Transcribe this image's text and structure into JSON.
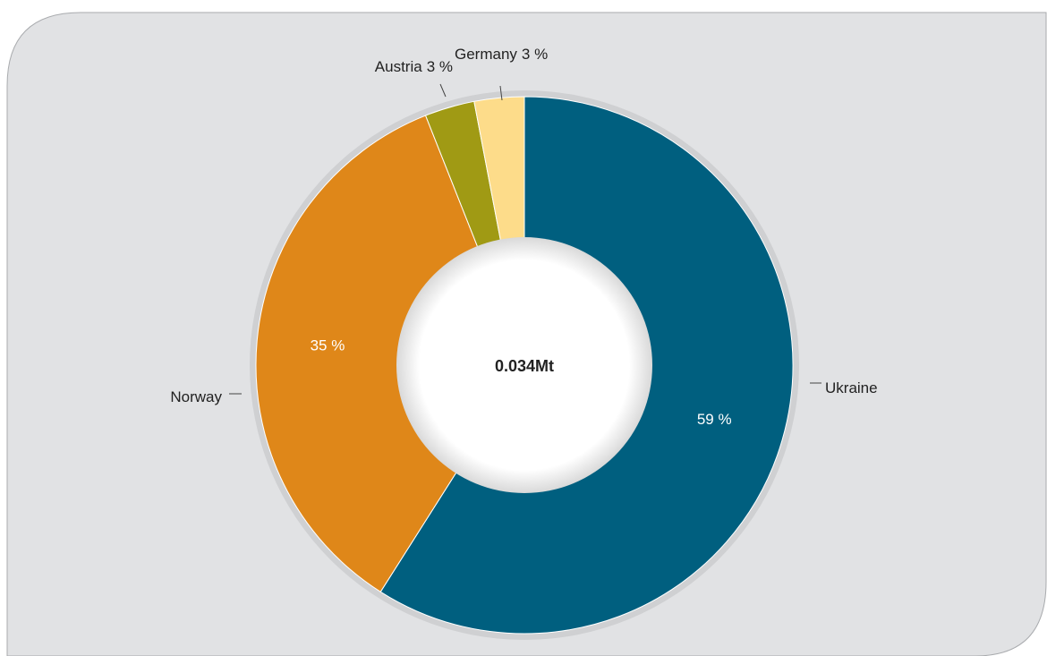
{
  "chart_data": {
    "type": "donut",
    "center_label": "0.034Mt",
    "categories": [
      "Ukraine",
      "Norway",
      "Austria",
      "Germany"
    ],
    "values": [
      59,
      35,
      3,
      3
    ],
    "value_labels": [
      "59 %",
      "35 %",
      "3 %",
      "3 %"
    ],
    "colors": [
      "#005f7f",
      "#df8719",
      "#a09a14",
      "#fddc8a"
    ]
  }
}
